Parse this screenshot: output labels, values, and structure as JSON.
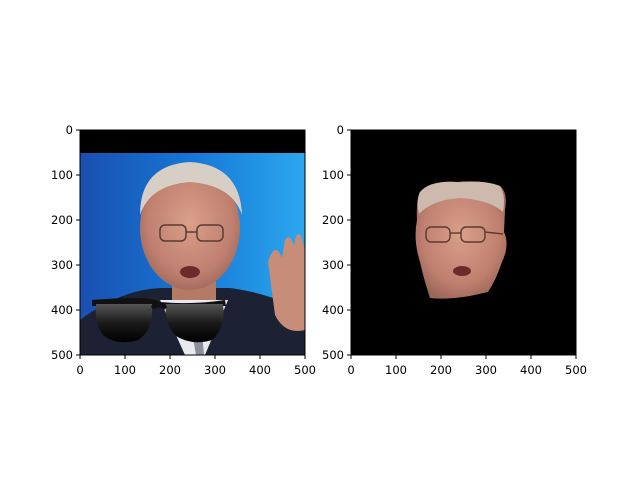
{
  "figure": {
    "panels": [
      {
        "id": "left",
        "description_image": "photo-with-sunglasses-overlay",
        "x_ticks": [
          "0",
          "100",
          "200",
          "300",
          "400",
          "500"
        ],
        "y_ticks": [
          "0",
          "100",
          "200",
          "300",
          "400",
          "500"
        ],
        "x_range": [
          0,
          500
        ],
        "y_range": [
          0,
          500
        ]
      },
      {
        "id": "right",
        "description_image": "segmented-face-on-black",
        "x_ticks": [
          "0",
          "100",
          "200",
          "300",
          "400",
          "500"
        ],
        "y_ticks": [
          "0",
          "100",
          "200",
          "300",
          "400",
          "500"
        ],
        "x_range": [
          0,
          500
        ],
        "y_range": [
          0,
          500
        ]
      }
    ],
    "colors": {
      "sky_blue": "#1e8fe0",
      "background_black": "#000000",
      "suit_dark": "#1c2233",
      "skin": "#c98f78",
      "hair": "#d7cfc6",
      "axis": "#000000"
    }
  }
}
